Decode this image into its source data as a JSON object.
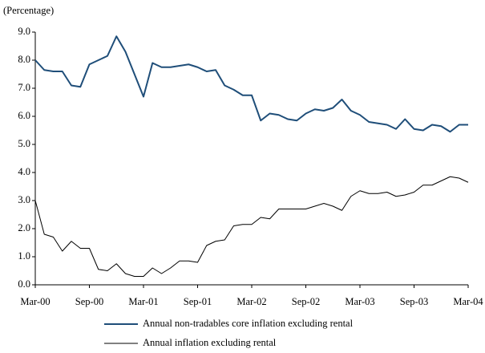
{
  "chart_data": {
    "type": "line",
    "y_axis_label": "(Percentage)",
    "categories": [
      "Mar-00",
      null,
      null,
      null,
      null,
      null,
      "Sep-00",
      null,
      null,
      null,
      null,
      null,
      "Mar-01",
      null,
      null,
      null,
      null,
      null,
      "Sep-01",
      null,
      null,
      null,
      null,
      null,
      "Mar-02",
      null,
      null,
      null,
      null,
      null,
      "Sep-02",
      null,
      null,
      null,
      null,
      null,
      "Mar-03",
      null,
      null,
      null,
      null,
      null,
      "Sep-03",
      null,
      null,
      null,
      null,
      null,
      "Mar-04"
    ],
    "series": [
      {
        "name": "Annual non-tradables core inflation excluding rental",
        "color": "#1f4e79",
        "width": 2,
        "values": [
          8.0,
          7.65,
          7.6,
          7.6,
          7.1,
          7.05,
          7.85,
          8.0,
          8.15,
          8.85,
          8.3,
          7.5,
          6.7,
          7.9,
          7.75,
          7.75,
          7.8,
          7.85,
          7.75,
          7.6,
          7.65,
          7.1,
          6.95,
          6.75,
          6.75,
          5.85,
          6.1,
          6.05,
          5.9,
          5.85,
          6.1,
          6.25,
          6.2,
          6.3,
          6.6,
          6.2,
          6.05,
          5.8,
          5.75,
          5.7,
          5.55,
          5.9,
          5.55,
          5.5,
          5.7,
          5.65,
          5.45,
          5.7,
          5.7
        ]
      },
      {
        "name": "Annual inflation excluding rental",
        "color": "#000000",
        "width": 1,
        "values": [
          3.0,
          1.8,
          1.7,
          1.2,
          1.55,
          1.3,
          1.3,
          0.55,
          0.5,
          0.75,
          0.4,
          0.3,
          0.3,
          0.6,
          0.4,
          0.6,
          0.85,
          0.85,
          0.8,
          1.4,
          1.55,
          1.6,
          2.1,
          2.15,
          2.15,
          2.4,
          2.35,
          2.7,
          2.7,
          2.7,
          2.7,
          2.8,
          2.9,
          2.8,
          2.65,
          3.15,
          3.35,
          3.25,
          3.25,
          3.3,
          3.15,
          3.2,
          3.3,
          3.55,
          3.55,
          3.7,
          3.85,
          3.8,
          3.65
        ]
      }
    ],
    "ylim": [
      0,
      9
    ],
    "yticks": [
      {
        "value": 0,
        "label": "0.0"
      },
      {
        "value": 1,
        "label": "1.0"
      },
      {
        "value": 2,
        "label": "2.0"
      },
      {
        "value": 3,
        "label": "3.0"
      },
      {
        "value": 4,
        "label": "4.0"
      },
      {
        "value": 5,
        "label": "5.0"
      },
      {
        "value": 6,
        "label": "6.0"
      },
      {
        "value": 7,
        "label": "7.0"
      },
      {
        "value": 8,
        "label": "8.0"
      },
      {
        "value": 9,
        "label": "9.0"
      }
    ],
    "grid": false
  }
}
